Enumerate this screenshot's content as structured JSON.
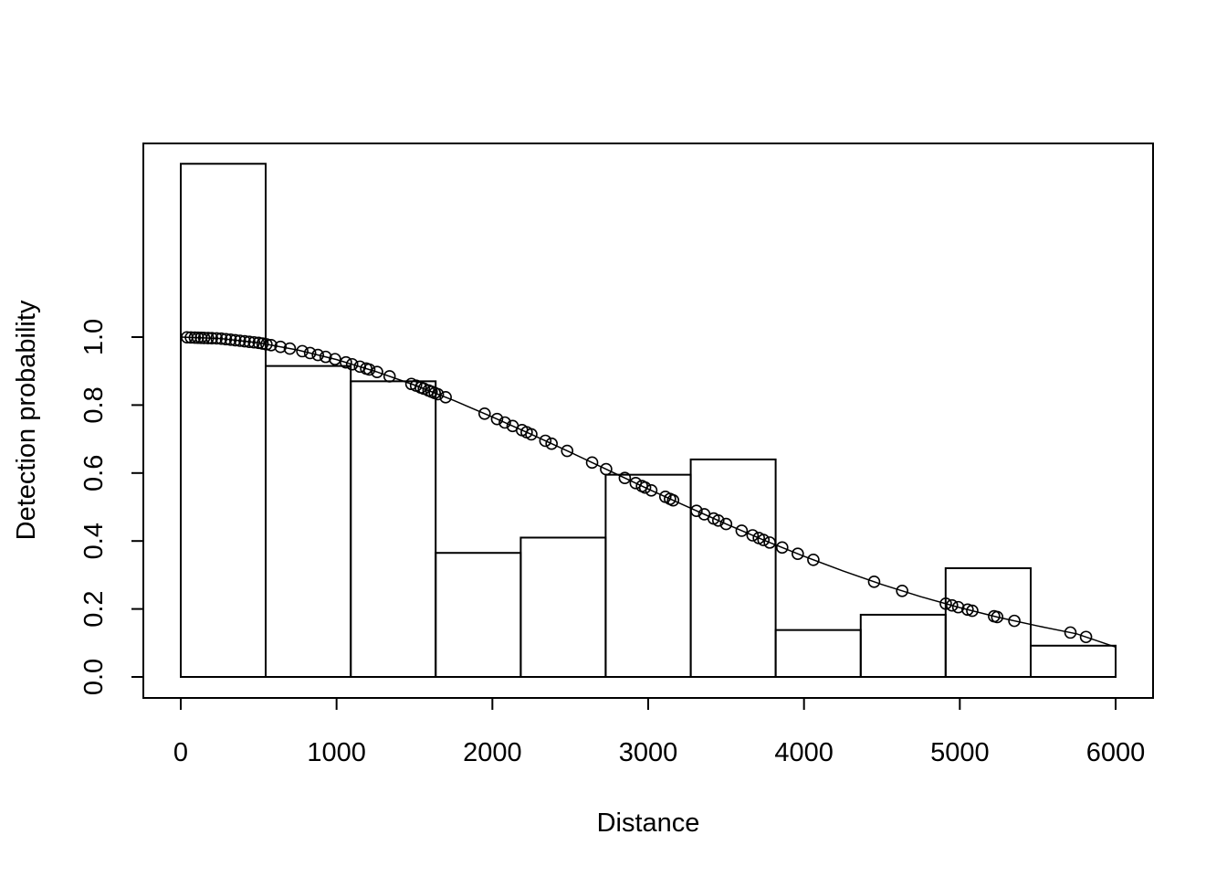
{
  "chart_data": {
    "type": "bar",
    "title": "",
    "xlabel": "Distance",
    "ylabel": "Detection probability",
    "xlim": [
      0,
      6000
    ],
    "ylim": [
      0,
      1.0
    ],
    "x_ticks": [
      "0",
      "1000",
      "2000",
      "3000",
      "4000",
      "5000",
      "6000"
    ],
    "y_ticks": [
      "0.0",
      "0.2",
      "0.4",
      "0.6",
      "0.8",
      "1.0"
    ],
    "x_tick_values": [
      0,
      1000,
      2000,
      3000,
      4000,
      5000,
      6000
    ],
    "y_tick_values": [
      0,
      0.2,
      0.4,
      0.6,
      0.8,
      1.0
    ],
    "grid": false,
    "legend": "none",
    "histogram": {
      "bin_edges": [
        0,
        545,
        1091,
        1636,
        2182,
        2727,
        3273,
        3818,
        4364,
        4909,
        5455,
        6000
      ],
      "heights": [
        1.51,
        0.915,
        0.87,
        0.365,
        0.41,
        0.595,
        0.64,
        0.138,
        0.183,
        0.32,
        0.092
      ]
    },
    "detection_curve": {
      "x": [
        0,
        250,
        500,
        750,
        1000,
        1250,
        1500,
        1750,
        2000,
        2250,
        2500,
        2750,
        3000,
        3250,
        3500,
        3750,
        4000,
        4250,
        4500,
        4750,
        5000,
        5250,
        5500,
        5750,
        6000
      ],
      "y": [
        1.0,
        0.996,
        0.983,
        0.962,
        0.934,
        0.899,
        0.859,
        0.814,
        0.765,
        0.714,
        0.661,
        0.607,
        0.553,
        0.501,
        0.45,
        0.401,
        0.355,
        0.312,
        0.272,
        0.236,
        0.204,
        0.175,
        0.15,
        0.127,
        0.088
      ]
    },
    "observations": [
      40,
      65,
      90,
      110,
      130,
      150,
      175,
      200,
      230,
      260,
      290,
      320,
      350,
      380,
      410,
      440,
      470,
      500,
      525,
      550,
      580,
      640,
      700,
      780,
      830,
      880,
      930,
      990,
      1060,
      1100,
      1150,
      1190,
      1210,
      1260,
      1340,
      1480,
      1510,
      1540,
      1560,
      1590,
      1610,
      1630,
      1650,
      1700,
      1950,
      2030,
      2080,
      2130,
      2190,
      2220,
      2250,
      2340,
      2380,
      2480,
      2640,
      2730,
      2850,
      2920,
      2960,
      2980,
      3020,
      3110,
      3140,
      3160,
      3310,
      3360,
      3420,
      3450,
      3500,
      3600,
      3670,
      3710,
      3740,
      3780,
      3860,
      3960,
      4060,
      4450,
      4630,
      4910,
      4950,
      4990,
      5050,
      5080,
      5220,
      5240,
      5350,
      5710,
      5810
    ]
  }
}
